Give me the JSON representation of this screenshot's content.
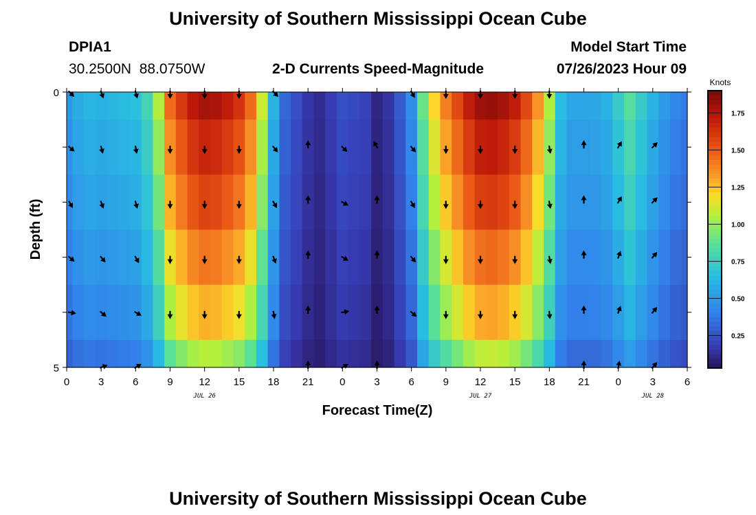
{
  "header": {
    "title": "University of Southern Mississippi Ocean Cube",
    "station_id": "DPIA1",
    "coords": "30.2500N  88.0750W",
    "subtitle": "2-D Currents Speed-Magnitude",
    "model_start_label": "Model Start Time",
    "model_start_value": "07/26/2023 Hour 09"
  },
  "footer": {
    "title": "University of Southern Mississippi Ocean Cube"
  },
  "chart_data": {
    "type": "heatmap",
    "title": "2-D Currents Speed-Magnitude",
    "xlabel": "Forecast Time(Z)",
    "ylabel": "Depth (ft)",
    "x_range_hours": [
      0,
      54
    ],
    "x_ticks": [
      "0",
      "3",
      "6",
      "9",
      "12",
      "15",
      "18",
      "21",
      "0",
      "3",
      "6",
      "9",
      "12",
      "15",
      "18",
      "21",
      "0",
      "3",
      "6"
    ],
    "date_labels": [
      {
        "text": "JUL 26",
        "hour": 12
      },
      {
        "text": "JUL 27",
        "hour": 36
      },
      {
        "text": "JUL 28",
        "hour": 51
      }
    ],
    "y_ticks": [
      "0",
      "5"
    ],
    "y_range": [
      0,
      5
    ],
    "depth_layers": 5,
    "colorbar": {
      "label": "Knots",
      "range": [
        0.03,
        1.9
      ],
      "ticks": [
        "0.25",
        "0.50",
        "0.75",
        "1.00",
        "1.25",
        "1.50",
        "1.75"
      ],
      "tick_values": [
        0.25,
        0.5,
        0.75,
        1.0,
        1.25,
        1.5,
        1.75
      ]
    },
    "speed_profile": {
      "hours": [
        0,
        1,
        2,
        3,
        4,
        5,
        6,
        7,
        8,
        9,
        10,
        11,
        12,
        13,
        14,
        15,
        16,
        17,
        18,
        19,
        20,
        21,
        22,
        23,
        24,
        25,
        26,
        27,
        28,
        29,
        30,
        31,
        32,
        33,
        34,
        35,
        36,
        37,
        38,
        39,
        40,
        41,
        42,
        43,
        44,
        45,
        46,
        47,
        48,
        49,
        50,
        51,
        52,
        53,
        54
      ],
      "values": [
        0.5,
        0.58,
        0.62,
        0.6,
        0.62,
        0.64,
        0.66,
        0.78,
        1.05,
        1.45,
        1.6,
        1.72,
        1.78,
        1.76,
        1.7,
        1.62,
        1.45,
        1.1,
        0.6,
        0.32,
        0.24,
        0.16,
        0.12,
        0.18,
        0.24,
        0.22,
        0.2,
        0.1,
        0.15,
        0.28,
        0.45,
        0.9,
        1.2,
        1.4,
        1.55,
        1.7,
        1.8,
        1.82,
        1.78,
        1.7,
        1.55,
        1.35,
        1.05,
        0.65,
        0.55,
        0.55,
        0.56,
        0.6,
        0.72,
        0.85,
        0.72,
        0.6,
        0.5,
        0.42,
        0.38
      ]
    },
    "layer_factors": [
      1.0,
      0.94,
      0.88,
      0.8,
      0.72,
      0.6
    ],
    "vector_hours": [
      0,
      3,
      6,
      9,
      12,
      15,
      18,
      21,
      24,
      27,
      30,
      33,
      36,
      39,
      42,
      45,
      48,
      51
    ],
    "vector_rows": [
      [
        135,
        160,
        165,
        180,
        180,
        180,
        135,
        null,
        null,
        null,
        150,
        180,
        180,
        180,
        180,
        null,
        null,
        null
      ],
      [
        130,
        165,
        170,
        180,
        180,
        180,
        140,
        0,
        135,
        330,
        140,
        180,
        180,
        180,
        170,
        0,
        30,
        45
      ],
      [
        150,
        160,
        165,
        180,
        180,
        180,
        150,
        0,
        120,
        0,
        150,
        180,
        180,
        180,
        170,
        0,
        30,
        45
      ],
      [
        130,
        140,
        150,
        180,
        180,
        180,
        160,
        0,
        120,
        0,
        140,
        180,
        180,
        180,
        170,
        0,
        20,
        40
      ],
      [
        100,
        130,
        120,
        180,
        180,
        180,
        170,
        0,
        80,
        0,
        130,
        180,
        180,
        180,
        175,
        0,
        20,
        40
      ],
      [
        null,
        70,
        60,
        null,
        null,
        null,
        null,
        0,
        60,
        0,
        null,
        null,
        null,
        null,
        null,
        0,
        10,
        40
      ]
    ]
  }
}
